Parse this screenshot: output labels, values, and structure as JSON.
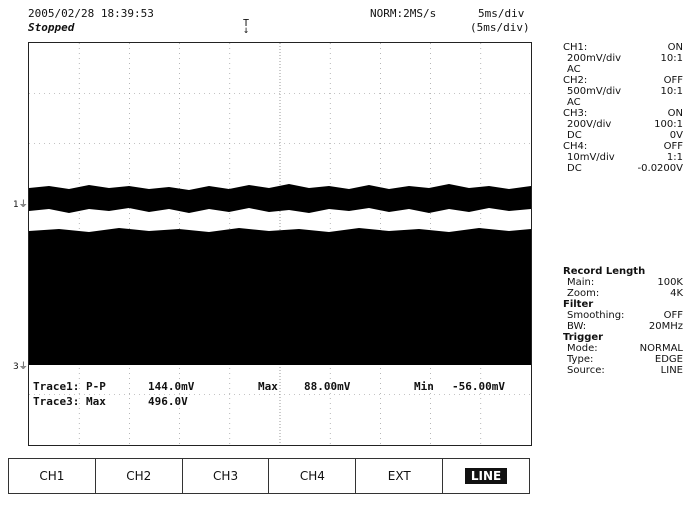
{
  "header": {
    "datetime": "2005/02/28 18:39:53",
    "status": "Stopped",
    "acquisition": "NORM:2MS/s",
    "timebase": "5ms/div",
    "timebase_sub": "(5ms/div)"
  },
  "channels": [
    {
      "name": "CH1:",
      "state": "ON",
      "scale": "200mV/div",
      "probe": "10:1",
      "coupling": "AC",
      "offset": ""
    },
    {
      "name": "CH2:",
      "state": "OFF",
      "scale": "500mV/div",
      "probe": "10:1",
      "coupling": "AC",
      "offset": ""
    },
    {
      "name": "CH3:",
      "state": "ON",
      "scale": "200V/div",
      "probe": "100:1",
      "coupling": "DC",
      "offset": "0V"
    },
    {
      "name": "CH4:",
      "state": "OFF",
      "scale": "10mV/div",
      "probe": "1:1",
      "coupling": "DC",
      "offset": "-0.0200V"
    }
  ],
  "record": {
    "title": "Record Length",
    "main_label": "Main:",
    "main_value": "100K",
    "zoom_label": "Zoom:",
    "zoom_value": "4K"
  },
  "filter": {
    "title": "Filter",
    "smoothing_label": "Smoothing:",
    "smoothing_value": "OFF",
    "bw_label": "BW:",
    "bw_value": "20MHz"
  },
  "trigger": {
    "title": "Trigger",
    "mode_label": "Mode:",
    "mode_value": "NORMAL",
    "type_label": "Type:",
    "type_value": "EDGE",
    "source_label": "Source:",
    "source_value": "LINE"
  },
  "measurements": {
    "t1_label": "Trace1: P-P",
    "t1_pp": "144.0mV",
    "t1_max_label": "Max",
    "t1_max": "88.00mV",
    "t1_min_label": "Min",
    "t1_min": "-56.00mV",
    "t3_label": "Trace3: Max",
    "t3_max": "496.0V"
  },
  "markers": {
    "ch1": "1",
    "ch3": "3",
    "trigger": "T"
  },
  "softkeys": [
    "CH1",
    "CH2",
    "CH3",
    "CH4",
    "EXT",
    "LINE"
  ],
  "selected_softkey": "LINE"
}
